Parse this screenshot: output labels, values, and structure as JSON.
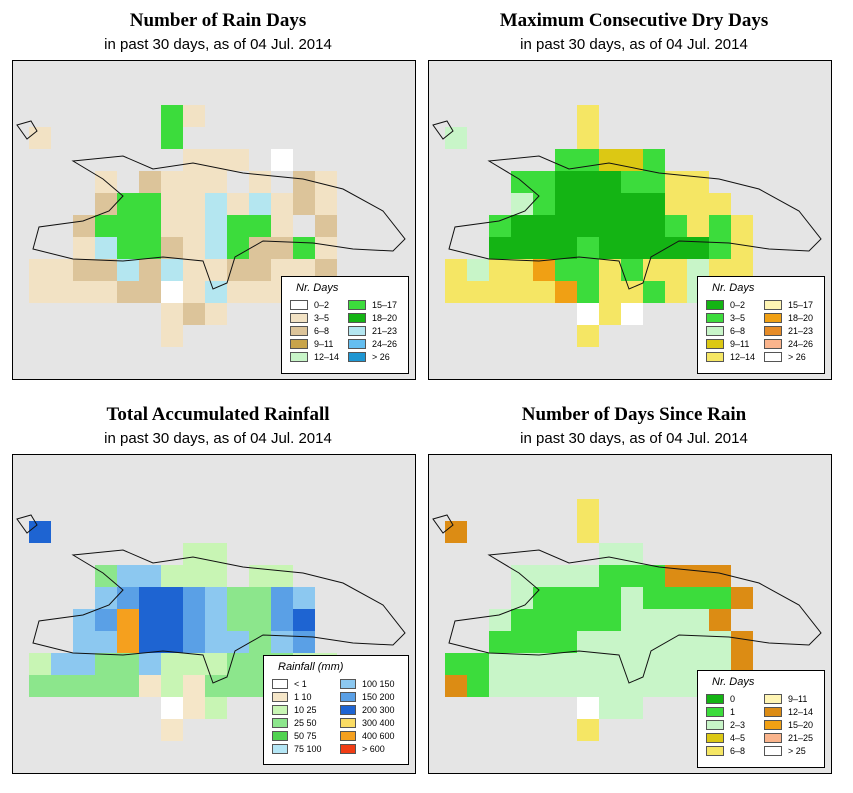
{
  "panels": [
    {
      "id": "rain-days",
      "title": "Number of Rain Days",
      "subtitle": "in past 30 days, as of  04 Jul. 2014",
      "legend": {
        "title": "Nr. Days",
        "items": [
          {
            "label": "0–2",
            "color": "#ffffff"
          },
          {
            "label": "3–5",
            "color": "#f2e2c4"
          },
          {
            "label": "6–8",
            "color": "#dcc49a"
          },
          {
            "label": "9–11",
            "color": "#c8a44a"
          },
          {
            "label": "12–14",
            "color": "#c8f5c8"
          },
          {
            "label": "15–17",
            "color": "#3cdc3c"
          },
          {
            "label": "18–20",
            "color": "#14b414"
          },
          {
            "label": "21–23",
            "color": "#b4e6f0"
          },
          {
            "label": "24–26",
            "color": "#64bef0"
          },
          {
            "label": "> 26",
            "color": "#1e96d2"
          }
        ]
      }
    },
    {
      "id": "max-dry-days",
      "title": "Maximum Consecutive Dry Days",
      "subtitle": "in past 30 days, as of  04 Jul. 2014",
      "legend": {
        "title": "Nr. Days",
        "items": [
          {
            "label": "0–2",
            "color": "#14b414"
          },
          {
            "label": "3–5",
            "color": "#3cdc3c"
          },
          {
            "label": "6–8",
            "color": "#c8f5c8"
          },
          {
            "label": "9–11",
            "color": "#dcc814"
          },
          {
            "label": "12–14",
            "color": "#f5e664"
          },
          {
            "label": "15–17",
            "color": "#fff5b4"
          },
          {
            "label": "18–20",
            "color": "#f0a014"
          },
          {
            "label": "21–23",
            "color": "#e68c28"
          },
          {
            "label": "24–26",
            "color": "#fab48c"
          },
          {
            "label": "> 26",
            "color": "#ffffff"
          }
        ]
      }
    },
    {
      "id": "total-rainfall",
      "title": "Total Accumulated Rainfall",
      "subtitle": "in past 30 days, as of  04 Jul. 2014",
      "legend": {
        "title": "Rainfall (mm)",
        "items": [
          {
            "label": "< 1",
            "color": "#ffffff"
          },
          {
            "label": "1   10",
            "color": "#f5e6c8"
          },
          {
            "label": "10   25",
            "color": "#c8f5b4"
          },
          {
            "label": "25   50",
            "color": "#8ce68c"
          },
          {
            "label": "50   75",
            "color": "#50d250"
          },
          {
            "label": "75   100",
            "color": "#b4e6f5"
          },
          {
            "label": "100   150",
            "color": "#8cc8f0"
          },
          {
            "label": "150   200",
            "color": "#5aa0e6"
          },
          {
            "label": "200   300",
            "color": "#1e64d2"
          },
          {
            "label": "300   400",
            "color": "#fadc64"
          },
          {
            "label": "400   600",
            "color": "#f5a01e"
          },
          {
            "label": "> 600",
            "color": "#f03c14"
          }
        ]
      }
    },
    {
      "id": "days-since-rain",
      "title": "Number of Days Since Rain",
      "subtitle": "in past 30 days, as of  04 Jul. 2014",
      "legend": {
        "title": "Nr. Days",
        "items": [
          {
            "label": "0",
            "color": "#14b414"
          },
          {
            "label": "1",
            "color": "#3cdc3c"
          },
          {
            "label": "2–3",
            "color": "#c8f5c8"
          },
          {
            "label": "4–5",
            "color": "#dcc814"
          },
          {
            "label": "6–8",
            "color": "#f5e664"
          },
          {
            "label": "9–11",
            "color": "#fff5b4"
          },
          {
            "label": "12–14",
            "color": "#dc8c14"
          },
          {
            "label": "15–20",
            "color": "#f0a014"
          },
          {
            "label": "21–25",
            "color": "#fab48c"
          },
          {
            "label": "> 25",
            "color": "#ffffff"
          }
        ]
      }
    }
  ],
  "map_grids": {
    "rain-days": [
      "......GT......",
      "T.....G.......",
      ".......TTT.W..",
      "...T.DTTT.T.DT",
      "...DGGTTBTBTDT",
      "..DGGGTTBGGT.D",
      "..TBGGDTBGDDGT",
      "TTDDBDBTTDDTTD",
      "TTTTDDWTBTTTDD",
      "......TDT.....",
      "......T......."
    ],
    "max-dry-days": [
      "......Y.......",
      "L.....Y.......",
      ".....MMSSM....",
      "...MMGGGMMYY..",
      "...LMGGGGGYYY.",
      "..MGGGGGGGMYMY",
      "..GGGGMGGGGGMY",
      "YLYYOMMYMYYLYY",
      "YYYYYOMYYMYLYY",
      "......WYW.....",
      "......Y......."
    ],
    "total-rainfall": [
      "..............",
      "B.............",
      ".......LL.....",
      "...MCCLLL.LL..",
      "...CPBBPCMMPC.",
      "..CPOBBPCMMPB.",
      "..CCOBBPCCMCP.",
      "LCCMMCLLLMMMLL",
      "MMMMMTLTMMMLMM",
      "......WTL.....",
      "......T......."
    ],
    "days-since-rain": [
      "......Y.......",
      "O.....Y.......",
      ".......LL.....",
      "...LLLLSSSOOO.",
      "...LSSSSLSSSSO",
      "..LSSSSSLLLLO.",
      "..SSSSLLLLLLLO",
      "SSLLLLLLLLLLLO",
      "OSLLLLLLLLLLLL",
      "......WLL.....",
      "......Y......."
    ]
  }
}
